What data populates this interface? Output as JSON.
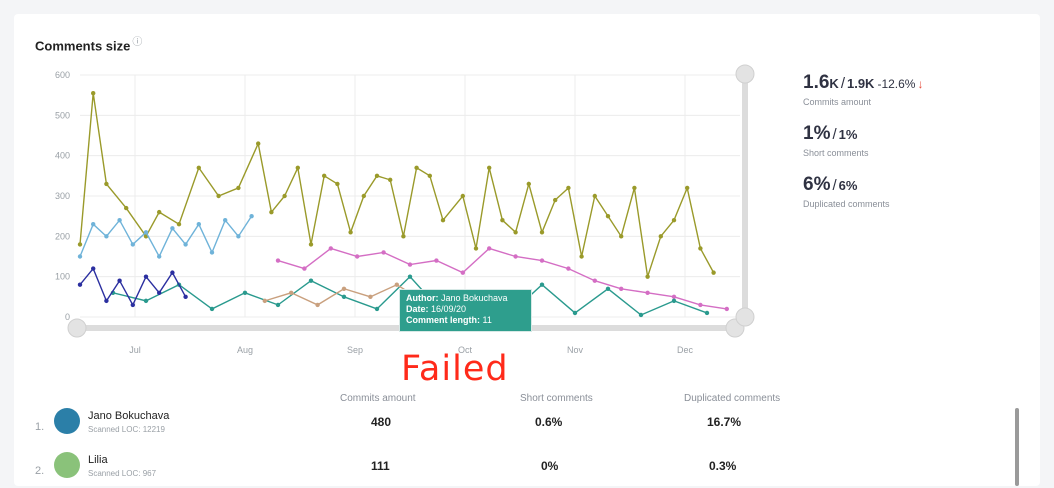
{
  "title": "Comments size",
  "info_icon": "info-icon",
  "chart_data": {
    "type": "line",
    "y_ticks": [
      "600",
      "500",
      "400",
      "300",
      "200",
      "100",
      "0"
    ],
    "ylim": [
      0,
      600
    ],
    "x_ticks": [
      "Jul",
      "Aug",
      "Sep",
      "Oct",
      "Nov",
      "Dec"
    ],
    "grid": true,
    "series": [
      {
        "color": "#9a9a2a",
        "x": [
          0.0,
          0.02,
          0.04,
          0.07,
          0.1,
          0.12,
          0.15,
          0.18,
          0.21,
          0.24,
          0.27,
          0.29,
          0.31,
          0.33,
          0.35,
          0.37,
          0.39,
          0.41,
          0.43,
          0.45,
          0.47,
          0.49,
          0.51,
          0.53,
          0.55,
          0.58,
          0.6,
          0.62,
          0.64,
          0.66,
          0.68,
          0.7,
          0.72,
          0.74,
          0.76,
          0.78,
          0.8,
          0.82,
          0.84,
          0.86,
          0.88,
          0.9,
          0.92,
          0.94,
          0.96
        ],
        "y": [
          180,
          555,
          330,
          270,
          200,
          260,
          230,
          370,
          300,
          320,
          430,
          260,
          300,
          370,
          180,
          350,
          330,
          210,
          300,
          350,
          340,
          200,
          370,
          350,
          240,
          300,
          170,
          370,
          240,
          210,
          330,
          210,
          290,
          320,
          150,
          300,
          250,
          200,
          320,
          100,
          200,
          240,
          320,
          170,
          110
        ]
      },
      {
        "color": "#6fb3d9",
        "x": [
          0.0,
          0.02,
          0.04,
          0.06,
          0.08,
          0.1,
          0.12,
          0.14,
          0.16,
          0.18,
          0.2,
          0.22,
          0.24,
          0.26
        ],
        "y": [
          150,
          230,
          200,
          240,
          180,
          210,
          150,
          220,
          180,
          230,
          160,
          240,
          200,
          250
        ]
      },
      {
        "color": "#d46ec4",
        "x": [
          0.3,
          0.34,
          0.38,
          0.42,
          0.46,
          0.5,
          0.54,
          0.58,
          0.62,
          0.66,
          0.7,
          0.74,
          0.78,
          0.82,
          0.86,
          0.9,
          0.94,
          0.98
        ],
        "y": [
          140,
          120,
          170,
          150,
          160,
          130,
          140,
          110,
          170,
          150,
          140,
          120,
          90,
          70,
          60,
          50,
          30,
          20
        ]
      },
      {
        "color": "#2a9a8e",
        "x": [
          0.05,
          0.1,
          0.15,
          0.2,
          0.25,
          0.3,
          0.35,
          0.4,
          0.45,
          0.5,
          0.55,
          0.6,
          0.65,
          0.7,
          0.75,
          0.8,
          0.85,
          0.9,
          0.95
        ],
        "y": [
          60,
          40,
          80,
          20,
          60,
          30,
          90,
          50,
          20,
          100,
          10,
          60,
          5,
          80,
          10,
          70,
          5,
          40,
          10
        ]
      },
      {
        "color": "#2b2fa0",
        "x": [
          0.0,
          0.02,
          0.04,
          0.06,
          0.08,
          0.1,
          0.12,
          0.14,
          0.16
        ],
        "y": [
          80,
          120,
          40,
          90,
          30,
          100,
          60,
          110,
          50
        ]
      },
      {
        "color": "#c9a07e",
        "x": [
          0.28,
          0.32,
          0.36,
          0.4,
          0.44,
          0.48,
          0.52
        ],
        "y": [
          40,
          60,
          30,
          70,
          50,
          80,
          40
        ]
      }
    ]
  },
  "tooltip": {
    "author_label": "Author:",
    "author": "Jano Bokuchava",
    "date_label": "Date:",
    "date": "16/09/20",
    "length_label": "Comment length:",
    "length": "11"
  },
  "stamp": "Failed",
  "stats": [
    {
      "value": "1.6",
      "unit": "K",
      "sep": "/",
      "secondary": "1.9K",
      "change": "-12.6%",
      "arrow": "↓",
      "label": "Commits amount"
    },
    {
      "value": "1%",
      "unit": "",
      "sep": "/",
      "secondary": "1%",
      "change": "",
      "arrow": "",
      "label": "Short comments"
    },
    {
      "value": "6%",
      "unit": "",
      "sep": "/",
      "secondary": "6%",
      "change": "",
      "arrow": "",
      "label": "Duplicated comments"
    }
  ],
  "table": {
    "headers": [
      "Commits amount",
      "Short comments",
      "Duplicated comments"
    ],
    "rows": [
      {
        "rank": "1.",
        "name": "Jano Bokuchava",
        "loc": "Scanned LOC: 12219",
        "commits": "480",
        "short": "0.6%",
        "dup": "16.7%",
        "avatar_color": "#2b7fa8"
      },
      {
        "rank": "2.",
        "name": "Lilia",
        "loc": "Scanned LOC: 967",
        "commits": "111",
        "short": "0%",
        "dup": "0.3%",
        "avatar_color": "#8ac27a"
      }
    ]
  }
}
